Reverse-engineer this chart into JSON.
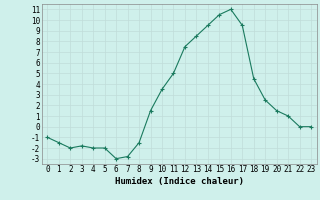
{
  "x": [
    0,
    1,
    2,
    3,
    4,
    5,
    6,
    7,
    8,
    9,
    10,
    11,
    12,
    13,
    14,
    15,
    16,
    17,
    18,
    19,
    20,
    21,
    22,
    23
  ],
  "y": [
    -1,
    -1.5,
    -2,
    -1.8,
    -2,
    -2,
    -3,
    -2.8,
    -1.5,
    1.5,
    3.5,
    5,
    7.5,
    8.5,
    9.5,
    10.5,
    11,
    9.5,
    4.5,
    2.5,
    1.5,
    1,
    0,
    0
  ],
  "xlabel": "Humidex (Indice chaleur)",
  "xlim": [
    -0.5,
    23.5
  ],
  "ylim": [
    -3.5,
    11.5
  ],
  "yticks": [
    -3,
    -2,
    -1,
    0,
    1,
    2,
    3,
    4,
    5,
    6,
    7,
    8,
    9,
    10,
    11
  ],
  "xticks": [
    0,
    1,
    2,
    3,
    4,
    5,
    6,
    7,
    8,
    9,
    10,
    11,
    12,
    13,
    14,
    15,
    16,
    17,
    18,
    19,
    20,
    21,
    22,
    23
  ],
  "line_color": "#1a7a5e",
  "bg_color": "#cff0eb",
  "grid_color": "#c0ddd9",
  "tick_fontsize": 5.5,
  "label_fontsize": 6.5
}
